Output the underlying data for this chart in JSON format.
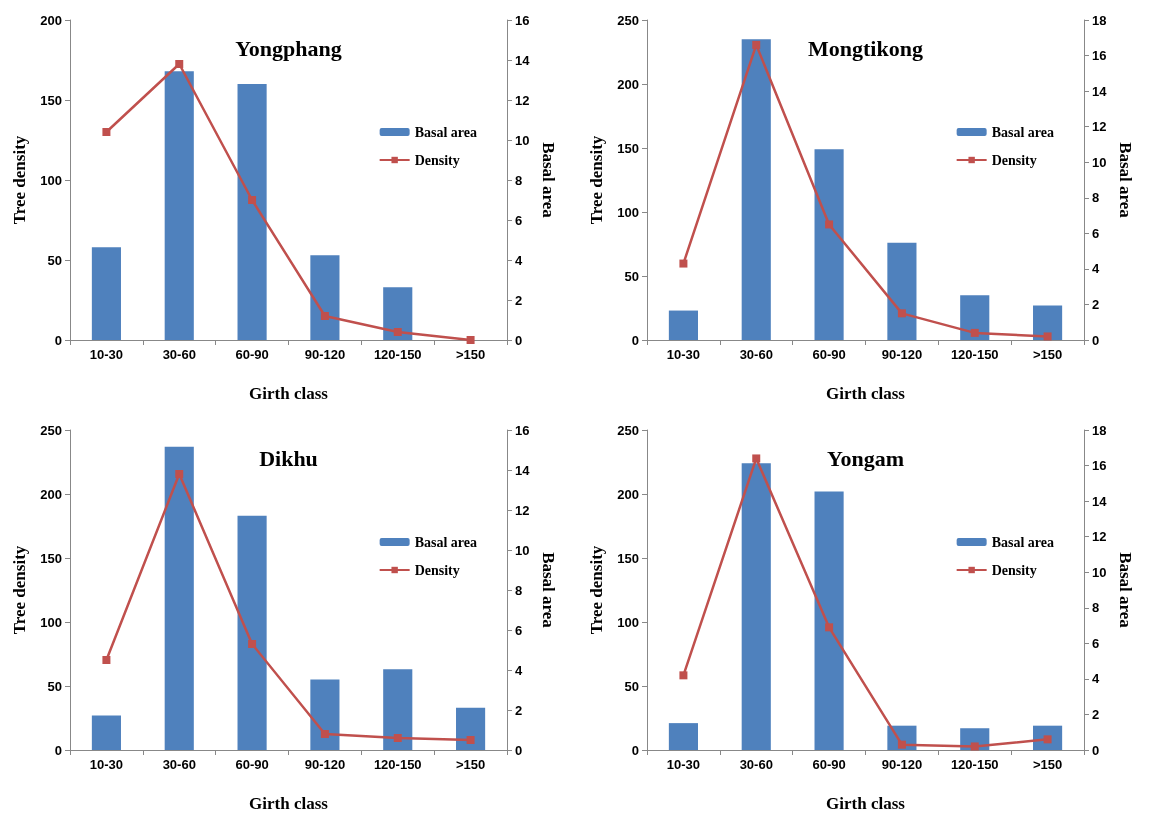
{
  "chart_data": [
    {
      "type": "bar",
      "title": "Yongphang",
      "xlabel": "Girth class",
      "ylabel": "Tree density",
      "y2label": "Basal area",
      "categories": [
        "10-30",
        "30-60",
        "60-90",
        "90-120",
        "120-150",
        ">150"
      ],
      "series": [
        {
          "name": "Basal area",
          "color": "#4f81bd",
          "values": [
            58,
            168,
            160,
            53,
            33,
            0
          ]
        },
        {
          "name": "Density",
          "type": "line",
          "axis": "y2",
          "color": "#c0504d",
          "values": [
            10.4,
            13.8,
            7.0,
            1.2,
            0.4,
            0
          ]
        }
      ],
      "ylim": [
        0,
        200
      ],
      "yticks": [
        0,
        50,
        100,
        150,
        200
      ],
      "y2lim": [
        0,
        16
      ],
      "y2ticks": [
        0,
        2,
        4,
        6,
        8,
        10,
        12,
        14,
        16
      ],
      "legend": "right",
      "marker": "square",
      "grid": false
    },
    {
      "type": "bar",
      "title": "Mongtikong",
      "xlabel": "Girth class",
      "ylabel": "Tree density",
      "y2label": "Basal area",
      "categories": [
        "10-30",
        "30-60",
        "60-90",
        "90-120",
        "120-150",
        ">150"
      ],
      "series": [
        {
          "name": "Basal area",
          "color": "#4f81bd",
          "values": [
            23,
            235,
            149,
            76,
            35,
            27
          ]
        },
        {
          "name": "Density",
          "type": "line",
          "axis": "y2",
          "color": "#c0504d",
          "values": [
            4.3,
            16.6,
            6.5,
            1.5,
            0.4,
            0.2
          ]
        }
      ],
      "ylim": [
        0,
        250
      ],
      "yticks": [
        0,
        50,
        100,
        150,
        200,
        250
      ],
      "y2lim": [
        0,
        18
      ],
      "y2ticks": [
        0,
        2,
        4,
        6,
        8,
        10,
        12,
        14,
        16,
        18
      ],
      "legend": "right",
      "marker": "square",
      "grid": false
    },
    {
      "type": "bar",
      "title": "Dikhu",
      "xlabel": "Girth class",
      "ylabel": "Tree density",
      "y2label": "Basal area",
      "categories": [
        "10-30",
        "30-60",
        "60-90",
        "90-120",
        "120-150",
        ">150"
      ],
      "series": [
        {
          "name": "Basal area",
          "color": "#4f81bd",
          "values": [
            27,
            237,
            183,
            55,
            63,
            33
          ]
        },
        {
          "name": "Density",
          "type": "line",
          "axis": "y2",
          "color": "#c0504d",
          "values": [
            4.5,
            13.8,
            5.3,
            0.8,
            0.6,
            0.5
          ]
        }
      ],
      "ylim": [
        0,
        250
      ],
      "yticks": [
        0,
        50,
        100,
        150,
        200,
        250
      ],
      "y2lim": [
        0,
        16
      ],
      "y2ticks": [
        0,
        2,
        4,
        6,
        8,
        10,
        12,
        14,
        16
      ],
      "legend": "right",
      "marker": "square",
      "grid": false
    },
    {
      "type": "bar",
      "title": "Yongam",
      "xlabel": "Girth class",
      "ylabel": "Tree density",
      "y2label": "Basal area",
      "categories": [
        "10-30",
        "30-60",
        "60-90",
        "90-120",
        "120-150",
        ">150"
      ],
      "series": [
        {
          "name": "Basal area",
          "color": "#4f81bd",
          "values": [
            21,
            224,
            202,
            19,
            17,
            19
          ]
        },
        {
          "name": "Density",
          "type": "line",
          "axis": "y2",
          "color": "#c0504d",
          "values": [
            4.2,
            16.4,
            6.9,
            0.3,
            0.2,
            0.6
          ]
        }
      ],
      "ylim": [
        0,
        250
      ],
      "yticks": [
        0,
        50,
        100,
        150,
        200,
        250
      ],
      "y2lim": [
        0,
        18
      ],
      "y2ticks": [
        0,
        2,
        4,
        6,
        8,
        10,
        12,
        14,
        16,
        18
      ],
      "legend": "right",
      "marker": "square",
      "grid": false
    }
  ]
}
